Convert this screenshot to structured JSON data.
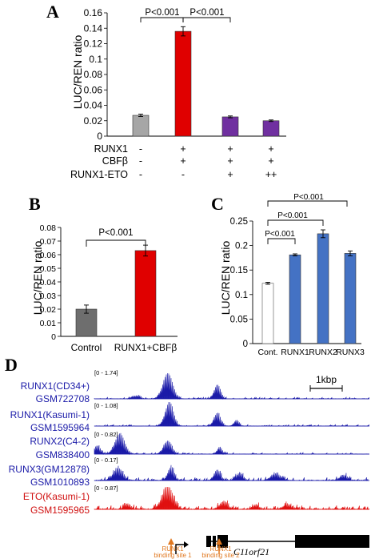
{
  "colors": {
    "gray": "#a6a6a6",
    "red": "#e00000",
    "purple": "#7030a0",
    "darkgray": "#6e6e6e",
    "blue": "#4472c4",
    "white": "#ffffff",
    "track_blue": "#1a1aa8",
    "track_red": "#e01010",
    "orange": "#e07820",
    "label_blue": "#1a1aa8",
    "label_red": "#d01010"
  },
  "chart_data": [
    {
      "panel": "A",
      "type": "bar",
      "ylabel": "LUC/REN ratio",
      "ylim": [
        0,
        0.16
      ],
      "yticks": [
        "0",
        "0.02",
        "0.04",
        "0.06",
        "0.08",
        "0.1",
        "0.12",
        "0.14",
        "0.16"
      ],
      "values": [
        0.027,
        0.136,
        0.025,
        0.02
      ],
      "errors": [
        0.0015,
        0.006,
        0.0012,
        0.001
      ],
      "bar_colors": [
        "gray",
        "red",
        "purple",
        "purple"
      ],
      "conditions": [
        {
          "name": "RUNX1",
          "marks": [
            "-",
            "+",
            "+",
            "+"
          ]
        },
        {
          "name": "CBFβ",
          "marks": [
            "-",
            "+",
            "+",
            "+"
          ]
        },
        {
          "name": "RUNX1-ETO",
          "marks": [
            "-",
            "-",
            "+",
            "++"
          ]
        }
      ],
      "annotations": [
        "P<0.001",
        "P<0.001"
      ]
    },
    {
      "panel": "B",
      "type": "bar",
      "ylabel": "LUC/REN ratio",
      "ylim": [
        0,
        0.08
      ],
      "yticks": [
        "0",
        "0.01",
        "0.02",
        "0.03",
        "0.04",
        "0.05",
        "0.06",
        "0.07",
        "0.08"
      ],
      "categories": [
        "Control",
        "RUNX1+CBFβ"
      ],
      "values": [
        0.02,
        0.063
      ],
      "errors": [
        0.003,
        0.004
      ],
      "bar_colors": [
        "darkgray",
        "red"
      ],
      "annotations": [
        "P<0.001"
      ]
    },
    {
      "panel": "C",
      "type": "bar",
      "ylabel": "LUC/REN ratio",
      "ylim": [
        0,
        0.25
      ],
      "yticks": [
        "0",
        "0.05",
        "0.1",
        "0.15",
        "0.2",
        "0.25"
      ],
      "categories": [
        "Cont.",
        "RUNX1",
        "RUNX2",
        "RUNX3"
      ],
      "values": [
        0.123,
        0.181,
        0.224,
        0.184
      ],
      "errors": [
        0.002,
        0.002,
        0.008,
        0.005
      ],
      "bar_colors": [
        "white",
        "blue",
        "blue",
        "blue"
      ],
      "annotations": [
        "P<0.001",
        "P<0.001",
        "P<0.001"
      ]
    }
  ],
  "panel_d": {
    "letter": "D",
    "scale_label": "1kbp",
    "tracks": [
      {
        "name": "RUNX1(CD34+)",
        "accession": "GSM722708",
        "range": "[0 - 1.74]",
        "color": "track_blue"
      },
      {
        "name": "RUNX1(Kasumi-1)",
        "accession": "GSM1595964",
        "range": "[0 - 1.08]",
        "color": "track_blue"
      },
      {
        "name": "RUNX2(C4-2)",
        "accession": "GSM838400",
        "range": "[0 - 0.82]",
        "color": "track_blue"
      },
      {
        "name": "RUNX3(GM12878)",
        "accession": "GSM1010893",
        "range": "[0 - 0.17]",
        "color": "track_blue"
      },
      {
        "name": "ETO(Kasumi-1)",
        "accession": "GSM1595965",
        "range": "[0 - 0.87]",
        "color": "track_red"
      }
    ],
    "gene_label": "C11orf21",
    "binding_sites": [
      {
        "line1": "RUNX1",
        "line2": "binding site 1"
      },
      {
        "line1": "RUNX1",
        "line2": "binding site 2"
      }
    ]
  }
}
